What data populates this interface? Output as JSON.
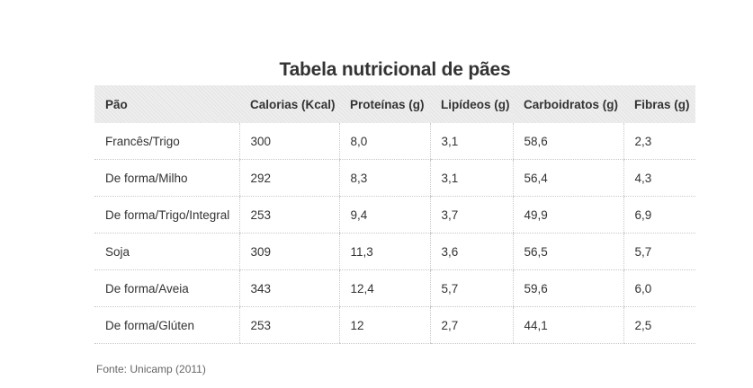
{
  "title": "Tabela nutricional de pães",
  "table": {
    "headers": [
      "Pão",
      "Calorias (Kcal)",
      "Proteínas (g)",
      "Lipídeos (g)",
      "Carboidratos (g)",
      "Fibras (g)"
    ],
    "rows": [
      [
        "Francês/Trigo",
        "300",
        "8,0",
        "3,1",
        "58,6",
        "2,3"
      ],
      [
        "De forma/Milho",
        "292",
        "8,3",
        "3,1",
        "56,4",
        "4,3"
      ],
      [
        "De forma/Trigo/Integral",
        "253",
        "9,4",
        "3,7",
        "49,9",
        "6,9"
      ],
      [
        "Soja",
        "309",
        "11,3",
        "3,6",
        "56,5",
        "5,7"
      ],
      [
        "De forma/Aveia",
        "343",
        "12,4",
        "5,7",
        "59,6",
        "6,0"
      ],
      [
        "De forma/Glúten",
        "253",
        "12",
        "2,7",
        "44,1",
        "2,5"
      ]
    ]
  },
  "source": "Fonte: Unicamp (2011)"
}
